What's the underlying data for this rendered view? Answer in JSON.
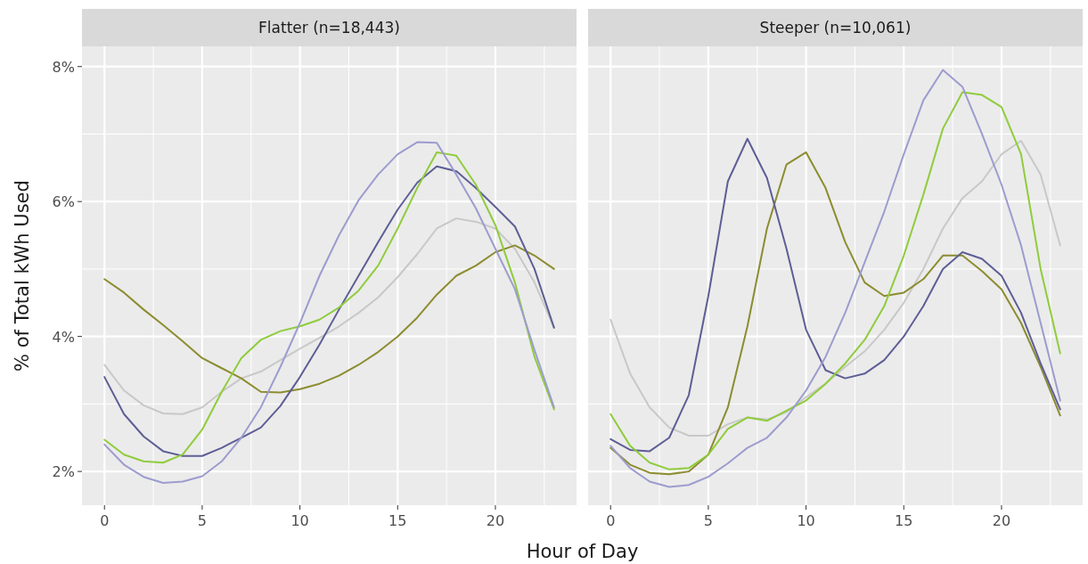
{
  "chart_data": [
    {
      "type": "line",
      "title": "Flatter (n=18,443)",
      "ylabel": "% of Total kWh Used",
      "xlabel": "Hour of Day",
      "x": [
        0,
        1,
        2,
        3,
        4,
        5,
        6,
        7,
        8,
        9,
        10,
        11,
        12,
        13,
        14,
        15,
        16,
        17,
        18,
        19,
        20,
        21,
        22,
        23
      ],
      "xlim": [
        -1.15,
        24.15
      ],
      "xticks": [
        0,
        5,
        10,
        15,
        20
      ],
      "ylim": [
        1.5,
        8.3
      ],
      "yticks": [
        {
          "value": 2,
          "label": "2%"
        },
        {
          "value": 4,
          "label": "4%"
        },
        {
          "value": 6,
          "label": "6%"
        },
        {
          "value": 8,
          "label": "8%"
        }
      ],
      "grid": true,
      "series": [
        {
          "color": "#c8c8c8",
          "values": [
            3.58,
            3.2,
            2.98,
            2.86,
            2.85,
            2.95,
            3.18,
            3.38,
            3.48,
            3.65,
            3.82,
            3.98,
            4.15,
            4.35,
            4.58,
            4.88,
            5.22,
            5.6,
            5.75,
            5.7,
            5.6,
            5.3,
            4.8,
            4.13
          ]
        },
        {
          "color": "#8c8c30",
          "values": [
            4.85,
            4.65,
            4.4,
            4.17,
            3.93,
            3.68,
            3.53,
            3.38,
            3.18,
            3.17,
            3.22,
            3.3,
            3.42,
            3.58,
            3.77,
            4.0,
            4.28,
            4.62,
            4.9,
            5.05,
            5.25,
            5.35,
            5.2,
            5.0
          ]
        },
        {
          "color": "#5e5e96",
          "values": [
            3.4,
            2.85,
            2.52,
            2.3,
            2.23,
            2.23,
            2.35,
            2.5,
            2.65,
            2.97,
            3.4,
            3.88,
            4.4,
            4.9,
            5.4,
            5.88,
            6.28,
            6.52,
            6.45,
            6.2,
            5.92,
            5.63,
            5.0,
            4.13
          ]
        },
        {
          "color": "#8fcc3c",
          "values": [
            2.47,
            2.25,
            2.15,
            2.13,
            2.25,
            2.62,
            3.18,
            3.68,
            3.95,
            4.08,
            4.15,
            4.25,
            4.43,
            4.68,
            5.05,
            5.6,
            6.2,
            6.73,
            6.68,
            6.25,
            5.65,
            4.8,
            3.7,
            2.92
          ]
        },
        {
          "color": "#9c9ccf",
          "values": [
            2.4,
            2.1,
            1.92,
            1.83,
            1.85,
            1.93,
            2.15,
            2.5,
            2.95,
            3.55,
            4.2,
            4.9,
            5.5,
            6.02,
            6.4,
            6.7,
            6.88,
            6.87,
            6.4,
            5.9,
            5.3,
            4.7,
            3.8,
            2.95
          ]
        }
      ]
    },
    {
      "type": "line",
      "title": "Steeper (n=10,061)",
      "x": [
        0,
        1,
        2,
        3,
        4,
        5,
        6,
        7,
        8,
        9,
        10,
        11,
        12,
        13,
        14,
        15,
        16,
        17,
        18,
        19,
        20,
        21,
        22,
        23
      ],
      "xlim": [
        -1.15,
        24.15
      ],
      "xticks": [
        0,
        5,
        10,
        15,
        20
      ],
      "ylim": [
        1.5,
        8.3
      ],
      "yticks": [
        2,
        4,
        6,
        8
      ],
      "tick_labels": "x",
      "grid": true,
      "series": [
        {
          "color": "#c8c8c8",
          "values": [
            4.25,
            3.45,
            2.95,
            2.65,
            2.53,
            2.53,
            2.7,
            2.8,
            2.77,
            2.88,
            3.1,
            3.3,
            3.55,
            3.78,
            4.1,
            4.5,
            5.0,
            5.6,
            6.05,
            6.3,
            6.7,
            6.9,
            6.4,
            5.35
          ]
        },
        {
          "color": "#8c8c30",
          "values": [
            2.35,
            2.1,
            1.98,
            1.96,
            2.0,
            2.25,
            2.95,
            4.15,
            5.6,
            6.55,
            6.73,
            6.2,
            5.4,
            4.8,
            4.6,
            4.65,
            4.85,
            5.2,
            5.2,
            4.97,
            4.7,
            4.2,
            3.55,
            2.83
          ]
        },
        {
          "color": "#5e5e96",
          "values": [
            2.48,
            2.32,
            2.3,
            2.5,
            3.13,
            4.6,
            6.3,
            6.93,
            6.35,
            5.3,
            4.1,
            3.5,
            3.38,
            3.45,
            3.65,
            4.0,
            4.45,
            5.0,
            5.25,
            5.15,
            4.9,
            4.35,
            3.6,
            2.92
          ]
        },
        {
          "color": "#8fcc3c",
          "values": [
            2.85,
            2.38,
            2.13,
            2.03,
            2.05,
            2.25,
            2.63,
            2.8,
            2.75,
            2.9,
            3.05,
            3.3,
            3.6,
            3.95,
            4.45,
            5.2,
            6.1,
            7.08,
            7.62,
            7.58,
            7.4,
            6.7,
            5.0,
            3.75
          ]
        },
        {
          "color": "#9c9ccf",
          "values": [
            2.38,
            2.05,
            1.85,
            1.77,
            1.8,
            1.92,
            2.12,
            2.35,
            2.5,
            2.8,
            3.2,
            3.7,
            4.35,
            5.1,
            5.85,
            6.7,
            7.5,
            7.95,
            7.7,
            7.0,
            6.25,
            5.35,
            4.2,
            3.05
          ]
        }
      ]
    }
  ]
}
